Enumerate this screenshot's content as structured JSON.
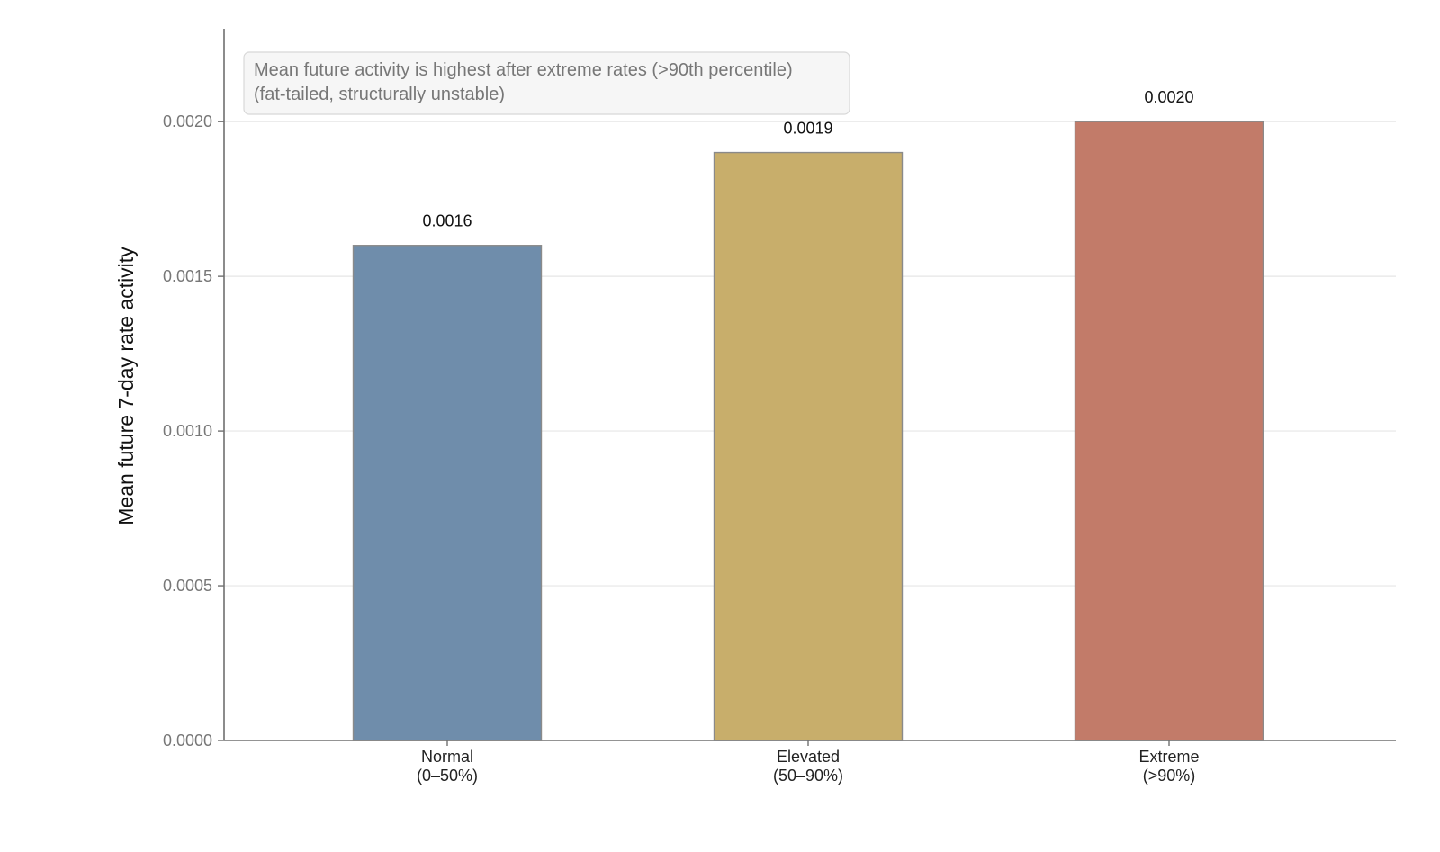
{
  "chart_data": {
    "type": "bar",
    "categories": [
      [
        "Normal",
        "(0–50%)"
      ],
      [
        "Elevated",
        "(50–90%)"
      ],
      [
        "Extreme",
        "(>90%)"
      ]
    ],
    "values": [
      0.0016,
      0.0019,
      0.002
    ],
    "data_labels": [
      "0.0016",
      "0.0019",
      "0.0020"
    ],
    "colors": [
      "#6f8dab",
      "#c8ae6b",
      "#c27b69"
    ],
    "ylabel": "Mean future 7-day rate activity",
    "xlabel": "",
    "title": "",
    "ylim": [
      0,
      0.0023
    ],
    "yticks": [
      0,
      0.0005,
      0.001,
      0.0015,
      0.002
    ],
    "ytick_labels": [
      "0.0000",
      "0.0005",
      "0.0010",
      "0.0015",
      "0.0020"
    ],
    "grid": "horizontal",
    "annotation": {
      "lines": [
        "Mean future activity is highest after extreme rates (>90th percentile)",
        "(fat-tailed, structurally unstable)"
      ],
      "placement": "top-left"
    }
  }
}
